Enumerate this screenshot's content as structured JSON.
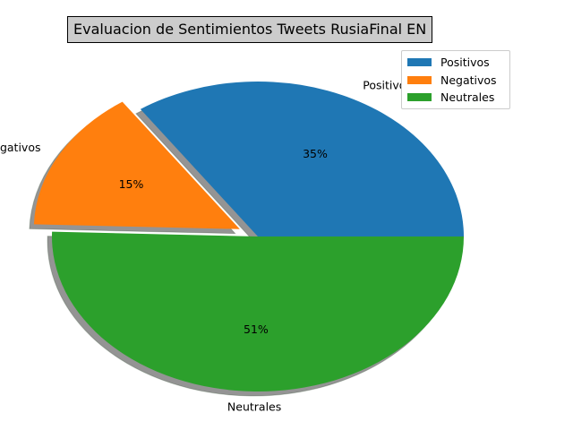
{
  "chart_data": {
    "type": "pie",
    "title": "Evaluacion de Sentimientos Tweets RusiaFinal EN",
    "slices": [
      {
        "label": "Positivos",
        "value": 35,
        "pct_label": "35%",
        "color": "#1f77b4",
        "explode": false
      },
      {
        "label": "Negativos",
        "value": 15,
        "pct_label": "15%",
        "color": "#ff7f0e",
        "explode": true
      },
      {
        "label": "Neutrales",
        "value": 51,
        "pct_label": "51%",
        "color": "#2ca02c",
        "explode": false
      }
    ],
    "shadow": true,
    "legend_position": "top-right"
  }
}
